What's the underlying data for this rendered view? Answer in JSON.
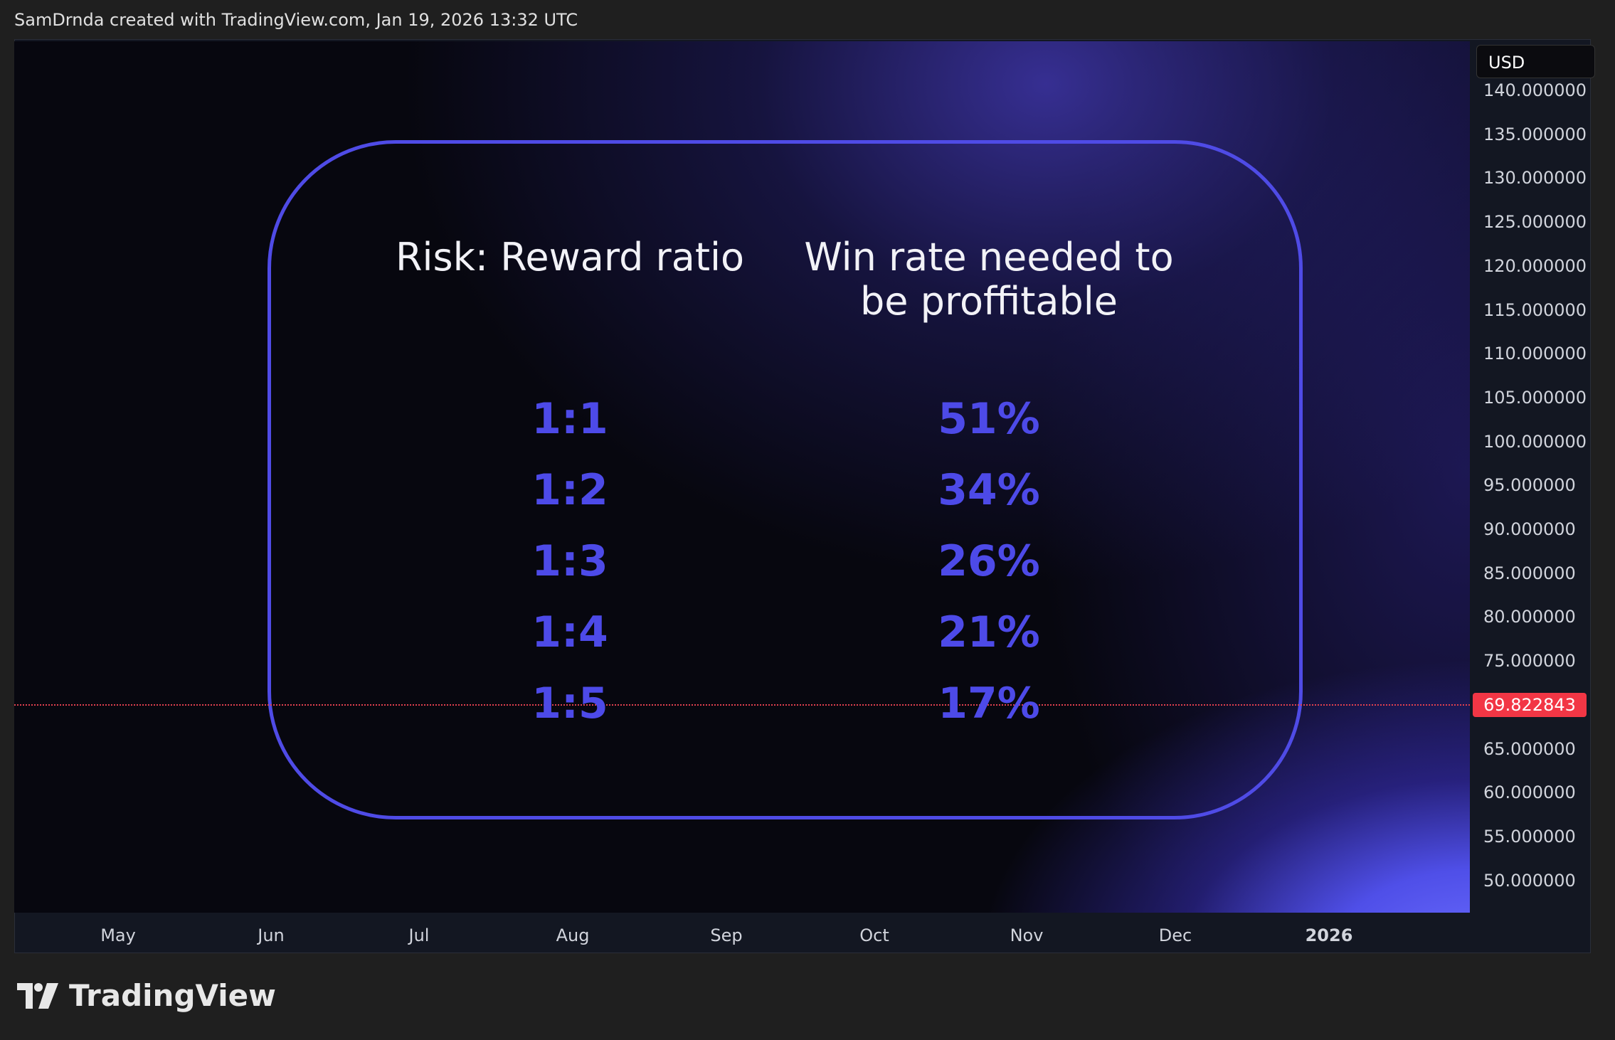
{
  "header": {
    "text": "SamDrnda created with TradingView.com, Jan 19, 2026 13:32 UTC"
  },
  "price_axis": {
    "currency": "USD",
    "ticks": [
      "140.000000",
      "135.000000",
      "130.000000",
      "125.000000",
      "120.000000",
      "115.000000",
      "110.000000",
      "105.000000",
      "100.000000",
      "95.000000",
      "90.000000",
      "85.000000",
      "80.000000",
      "75.000000",
      "65.000000",
      "60.000000",
      "55.000000",
      "50.000000"
    ],
    "last_price": "69.822843"
  },
  "time_axis": {
    "labels": [
      "May",
      "Jun",
      "Jul",
      "Aug",
      "Sep",
      "Oct",
      "Nov",
      "Dec",
      "2026"
    ]
  },
  "table": {
    "header_left": "Risk: Reward ratio",
    "header_right": [
      "Win rate needed to",
      "be proffitable"
    ],
    "rows": [
      [
        "1:1",
        "51%"
      ],
      [
        "1:2",
        "34%"
      ],
      [
        "1:3",
        "26%"
      ],
      [
        "1:4",
        "21%"
      ],
      [
        "1:5",
        "17%"
      ]
    ]
  },
  "footer": {
    "logo_text": "TradingView"
  }
}
